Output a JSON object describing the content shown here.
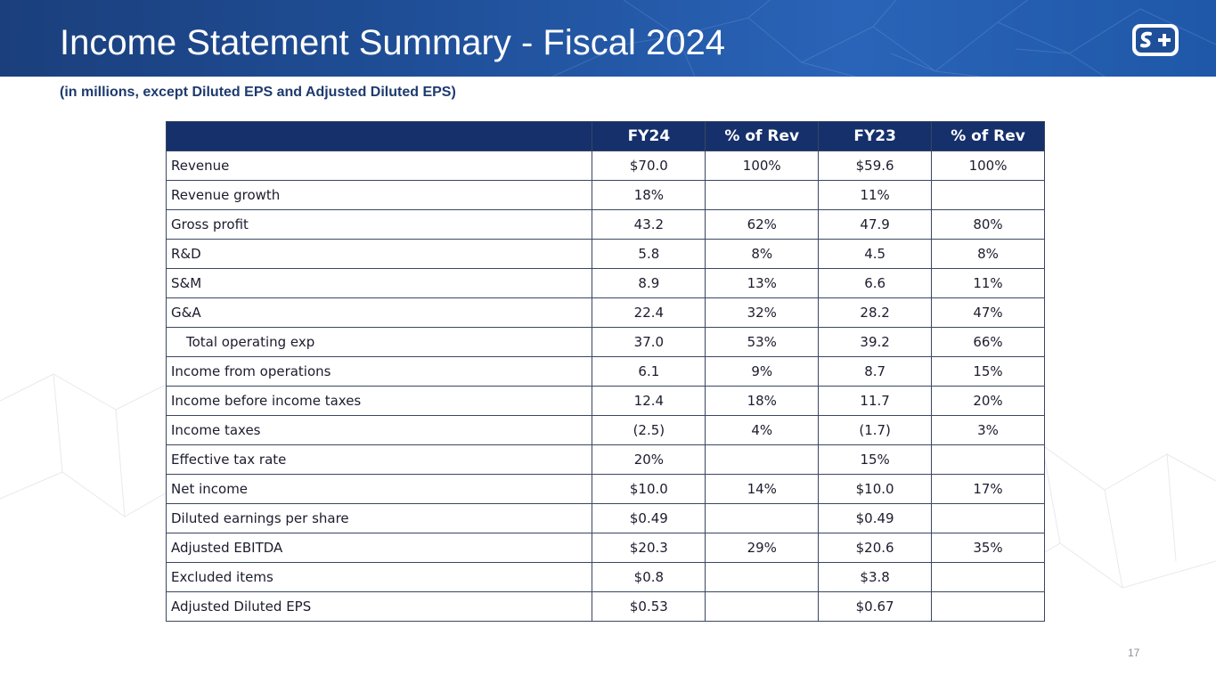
{
  "slide": {
    "title": "Income Statement Summary - Fiscal 2024",
    "subtitle": "(in millions, except Diluted EPS and Adjusted Diluted EPS)",
    "page_number": "17",
    "logo_text": "S+"
  },
  "colors": {
    "header_band": "#1f4f98",
    "table_header": "#15306b",
    "subtitle_text": "#1e3a6e"
  },
  "table": {
    "headers": [
      "",
      "FY24",
      "% of Rev",
      "FY23",
      "% of Rev"
    ],
    "rows": [
      [
        "Revenue",
        "$70.0",
        "100%",
        "$59.6",
        "100%"
      ],
      [
        "Revenue growth",
        "18%",
        "",
        "11%",
        ""
      ],
      [
        "Gross profit",
        "43.2",
        "62%",
        "47.9",
        "80%"
      ],
      [
        "R&D",
        "5.8",
        "8%",
        "4.5",
        "8%"
      ],
      [
        "S&M",
        "8.9",
        "13%",
        "6.6",
        "11%"
      ],
      [
        "G&A",
        "22.4",
        "32%",
        "28.2",
        "47%"
      ],
      [
        "Total operating exp",
        "37.0",
        "53%",
        "39.2",
        "66%"
      ],
      [
        "Income from operations",
        "6.1",
        "9%",
        "8.7",
        "15%"
      ],
      [
        "Income before income taxes",
        "12.4",
        "18%",
        "11.7",
        "20%"
      ],
      [
        "Income taxes",
        "(2.5)",
        "4%",
        "(1.7)",
        "3%"
      ],
      [
        "Effective tax rate",
        "20%",
        "",
        "15%",
        ""
      ],
      [
        "Net income",
        "$10.0",
        "14%",
        "$10.0",
        "17%"
      ],
      [
        "Diluted earnings per share",
        "$0.49",
        "",
        "$0.49",
        ""
      ],
      [
        "Adjusted EBITDA",
        "$20.3",
        "29%",
        "$20.6",
        "35%"
      ],
      [
        "Excluded items",
        "$0.8",
        "",
        "$3.8",
        ""
      ],
      [
        "Adjusted Diluted EPS",
        "$0.53",
        "",
        "$0.67",
        ""
      ]
    ]
  }
}
